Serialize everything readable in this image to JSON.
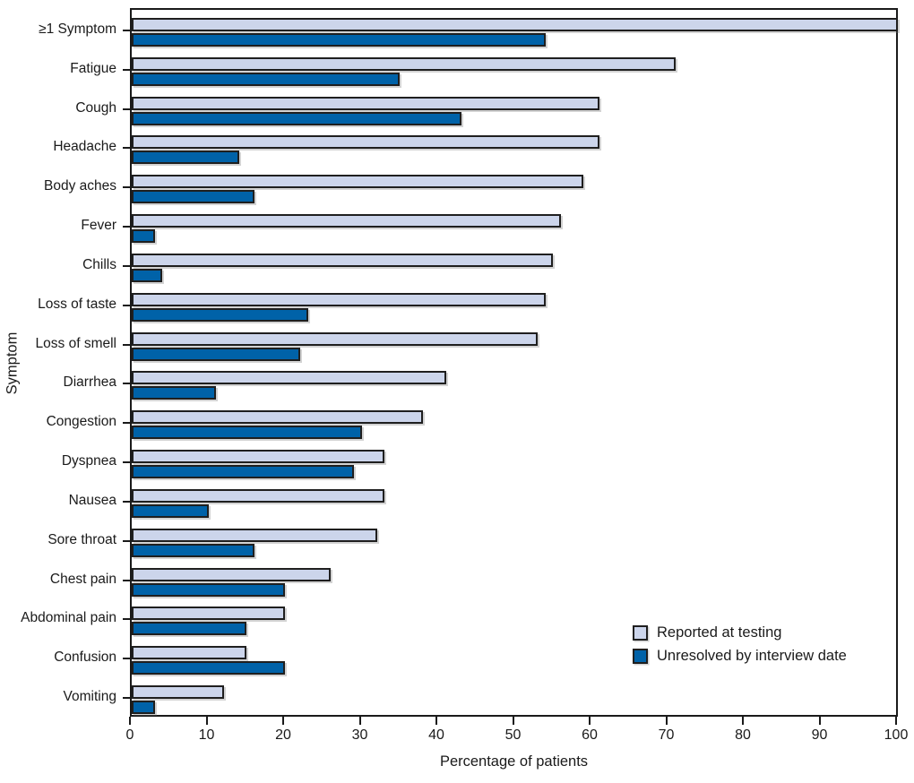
{
  "figure": {
    "background": "#ffffff",
    "frame_color": "#1a1a1a"
  },
  "chart_data": {
    "type": "bar",
    "orientation": "horizontal",
    "title": "",
    "xlabel": "Percentage of patients",
    "ylabel": "Symptom",
    "xlim": [
      0,
      100
    ],
    "xticks": [
      0,
      10,
      20,
      30,
      40,
      50,
      60,
      70,
      80,
      90,
      100
    ],
    "grid": false,
    "legend_position": "inside-bottom-right",
    "categories": [
      "≥1 Symptom",
      "Fatigue",
      "Cough",
      "Headache",
      "Body aches",
      "Fever",
      "Chills",
      "Loss of taste",
      "Loss of smell",
      "Diarrhea",
      "Congestion",
      "Dyspnea",
      "Nausea",
      "Sore throat",
      "Chest pain",
      "Abdominal pain",
      "Confusion",
      "Vomiting"
    ],
    "series": [
      {
        "name": "Reported at testing",
        "color": "#ccd5eb",
        "values": [
          100,
          71,
          61,
          61,
          59,
          56,
          55,
          54,
          53,
          41,
          38,
          33,
          33,
          32,
          26,
          20,
          15,
          12
        ]
      },
      {
        "name": "Unresolved by interview date",
        "color": "#0062a8",
        "values": [
          54,
          35,
          43,
          14,
          16,
          3,
          4,
          23,
          22,
          11,
          30,
          29,
          10,
          16,
          20,
          15,
          20,
          3
        ]
      }
    ]
  },
  "legend": {
    "items": [
      {
        "label": "Reported at testing"
      },
      {
        "label": "Unresolved by interview date"
      }
    ]
  }
}
